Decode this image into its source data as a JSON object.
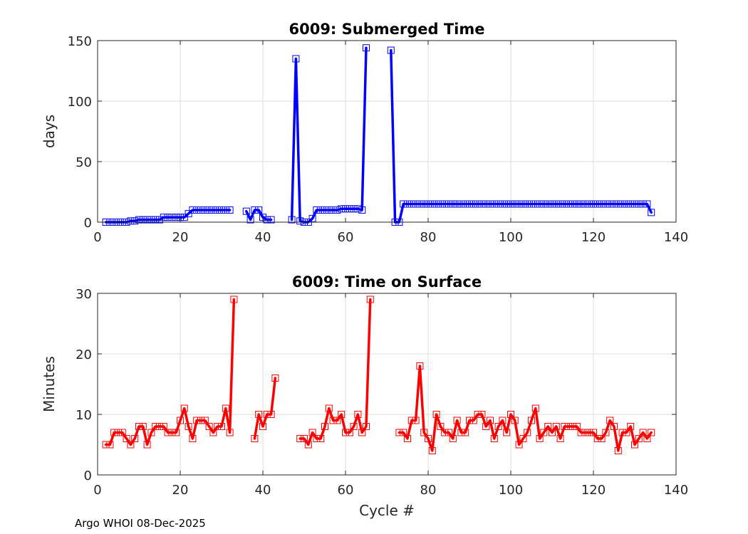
{
  "footer": "Argo WHOI 08-Dec-2025",
  "chart_data": [
    {
      "type": "line",
      "title": "6009: Submerged Time",
      "xlabel": "",
      "ylabel": "days",
      "xlim": [
        0,
        140
      ],
      "ylim": [
        0,
        150
      ],
      "xticks": [
        0,
        20,
        40,
        60,
        80,
        100,
        120,
        140
      ],
      "yticks": [
        0,
        50,
        100,
        150
      ],
      "grid": true,
      "color": "#0000ff",
      "series": [
        {
          "name": "Submerged Time",
          "x": [
            2,
            3,
            4,
            5,
            6,
            7,
            8,
            9,
            10,
            11,
            12,
            13,
            14,
            15,
            16,
            17,
            18,
            19,
            20,
            21,
            22,
            23,
            24,
            25,
            26,
            27,
            28,
            29,
            30,
            31,
            32
          ],
          "y": [
            0,
            0,
            0,
            0,
            0,
            0,
            1,
            1,
            2,
            2,
            2,
            2,
            2,
            2,
            4,
            4,
            4,
            4,
            4,
            4,
            7,
            10,
            10,
            10,
            10,
            10,
            10,
            10,
            10,
            10,
            10
          ]
        },
        {
          "name": "Submerged Time",
          "x": [
            36,
            37,
            38,
            39,
            40,
            41,
            42
          ],
          "y": [
            9,
            2,
            10,
            10,
            4,
            2,
            2
          ]
        },
        {
          "name": "Submerged Time",
          "x": [
            47,
            48,
            49,
            50,
            51,
            52,
            53,
            54,
            55,
            56,
            57,
            58,
            59,
            60,
            61,
            62,
            63,
            64,
            65
          ],
          "y": [
            2,
            135,
            1,
            0,
            0,
            3,
            10,
            10,
            10,
            10,
            10,
            10,
            11,
            11,
            11,
            11,
            11,
            10,
            144
          ]
        },
        {
          "name": "Submerged Time",
          "x": [
            71,
            72,
            73,
            74,
            75,
            76,
            77,
            78,
            79,
            80,
            81,
            82,
            83,
            84,
            85,
            86,
            87,
            88,
            89,
            90,
            91,
            92,
            93,
            94,
            95,
            96,
            97,
            98,
            99,
            100,
            101,
            102,
            103,
            104,
            105,
            106,
            107,
            108,
            109,
            110,
            111,
            112,
            113,
            114,
            115,
            116,
            117,
            118,
            119,
            120,
            121,
            122,
            123,
            124,
            125,
            126,
            127,
            128,
            129,
            130,
            131,
            132,
            133,
            134
          ],
          "y": [
            142,
            0,
            0,
            15,
            15,
            15,
            15,
            15,
            15,
            15,
            15,
            15,
            15,
            15,
            15,
            15,
            15,
            15,
            15,
            15,
            15,
            15,
            15,
            15,
            15,
            15,
            15,
            15,
            15,
            15,
            15,
            15,
            15,
            15,
            15,
            15,
            15,
            15,
            15,
            15,
            15,
            15,
            15,
            15,
            15,
            15,
            15,
            15,
            15,
            15,
            15,
            15,
            15,
            15,
            15,
            15,
            15,
            15,
            15,
            15,
            15,
            15,
            15,
            8
          ]
        }
      ]
    },
    {
      "type": "line",
      "title": "6009: Time on Surface",
      "xlabel": "Cycle #",
      "ylabel": "Minutes",
      "xlim": [
        0,
        140
      ],
      "ylim": [
        0,
        30
      ],
      "xticks": [
        0,
        20,
        40,
        60,
        80,
        100,
        120,
        140
      ],
      "yticks": [
        0,
        10,
        20,
        30
      ],
      "grid": true,
      "color": "#ff0000",
      "series": [
        {
          "name": "Time on Surface",
          "x": [
            2,
            3,
            4,
            5,
            6,
            7,
            8,
            9,
            10,
            11,
            12,
            13,
            14,
            15,
            16,
            17,
            18,
            19,
            20,
            21,
            22,
            23,
            24,
            25,
            26,
            27,
            28,
            29,
            30,
            31,
            32,
            33
          ],
          "y": [
            5,
            5,
            7,
            7,
            7,
            6,
            5,
            6,
            8,
            8,
            5,
            7,
            8,
            8,
            8,
            7,
            7,
            7,
            9,
            11,
            8,
            6,
            9,
            9,
            9,
            8,
            7,
            8,
            8,
            11,
            7,
            29
          ]
        },
        {
          "name": "Time on Surface",
          "x": [
            38,
            39,
            40,
            41,
            42,
            43
          ],
          "y": [
            6,
            10,
            8,
            10,
            10,
            16
          ]
        },
        {
          "name": "Time on Surface",
          "x": [
            49,
            50,
            51,
            52,
            53,
            54,
            55,
            56,
            57,
            58,
            59,
            60,
            61,
            62,
            63,
            64,
            65,
            66
          ],
          "y": [
            6,
            6,
            5,
            7,
            6,
            6,
            8,
            11,
            9,
            9,
            10,
            7,
            7,
            8,
            10,
            7,
            8,
            29
          ]
        },
        {
          "name": "Time on Surface",
          "x": [
            73,
            74,
            75,
            76,
            77,
            78,
            79,
            80,
            81,
            82,
            83,
            84,
            85,
            86,
            87,
            88,
            89,
            90,
            91,
            92,
            93,
            94,
            95,
            96,
            97,
            98,
            99,
            100,
            101,
            102,
            103,
            104,
            105,
            106,
            107,
            108,
            109,
            110,
            111,
            112,
            113,
            114,
            115,
            116,
            117,
            118,
            119,
            120,
            121,
            122,
            123,
            124,
            125,
            126,
            127,
            128,
            129,
            130,
            131,
            132,
            133,
            134
          ],
          "y": [
            7,
            7,
            6,
            9,
            9,
            18,
            7,
            6,
            4,
            10,
            8,
            7,
            7,
            6,
            9,
            7,
            7,
            9,
            9,
            10,
            10,
            8,
            9,
            6,
            8,
            9,
            7,
            10,
            9,
            5,
            6,
            7,
            9,
            11,
            6,
            7,
            8,
            7,
            8,
            6,
            8,
            8,
            8,
            8,
            7,
            7,
            7,
            7,
            6,
            6,
            7,
            9,
            8,
            4,
            7,
            7,
            8,
            5,
            6,
            7,
            6,
            7
          ]
        }
      ]
    }
  ]
}
